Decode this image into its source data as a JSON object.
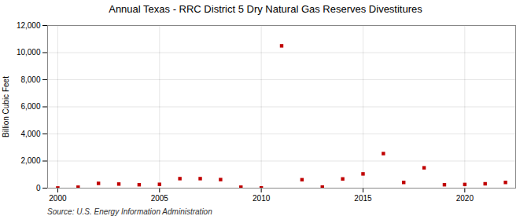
{
  "chart_data": {
    "type": "scatter",
    "title": "Annual Texas - RRC District 5 Dry Natural Gas Reserves Divestitures",
    "ylabel": "Billion Cubic Feet",
    "source": "Source: U.S. Energy Information Administration",
    "x": [
      2000,
      2001,
      2002,
      2003,
      2004,
      2005,
      2006,
      2007,
      2008,
      2009,
      2010,
      2011,
      2012,
      2013,
      2014,
      2015,
      2016,
      2017,
      2018,
      2019,
      2020,
      2021,
      2022
    ],
    "values": [
      10,
      70,
      350,
      300,
      250,
      280,
      700,
      700,
      630,
      70,
      20,
      10500,
      620,
      80,
      680,
      1050,
      2550,
      420,
      1500,
      250,
      270,
      320,
      420
    ],
    "color": "#c00000",
    "marker": "square",
    "xlim": [
      1999.5,
      2022.5
    ],
    "xticks": [
      2000,
      2005,
      2010,
      2015,
      2020
    ],
    "ylim": [
      0,
      12000
    ],
    "yticks": [
      0,
      {
        "value": 2000,
        "label": "2,000"
      },
      {
        "value": 4000,
        "label": "4,000"
      },
      {
        "value": 6000,
        "label": "6,000"
      },
      {
        "value": 8000,
        "label": "8,000"
      },
      {
        "value": 10000,
        "label": "10,000"
      },
      {
        "value": 12000,
        "label": "12,000"
      }
    ],
    "grid": true
  }
}
